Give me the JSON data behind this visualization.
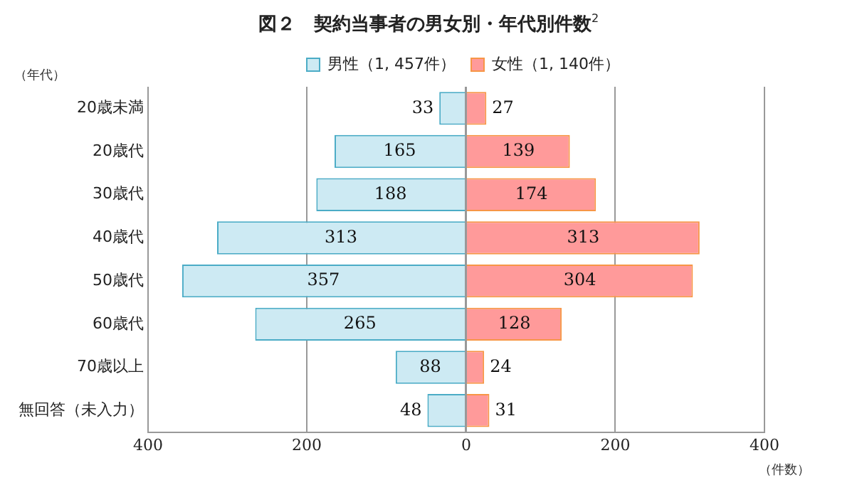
{
  "chart_data": [
    {
      "type": "bar",
      "orientation": "horizontal",
      "title": "図２　契約当事者の男女別・年代別件数$^{2}$",
      "ylabel": "（年代）",
      "categories": [
        "20歳未満",
        "20歳代",
        "30歳代",
        "40歳代",
        "50歳代",
        "60歳代",
        "70歳以上",
        "無回答（未入力）"
      ],
      "series": [
        {
          "name": "男性（1, 457件）",
          "color": "#cdeaf3",
          "values": [
            33,
            165,
            188,
            313,
            357,
            265,
            88,
            48
          ]
        }
      ],
      "data_labels": true,
      "xlim": [
        400,
        0
      ],
      "xticks": [
        400,
        200,
        {
          "value": 0,
          "label": null
        }
      ],
      "grid": "x",
      "legend": "top"
    },
    {
      "type": "bar",
      "orientation": "horizontal",
      "xlabel": "（件数）",
      "series": [
        {
          "name": "女性（1, 140件）",
          "color": "#ff9a9a",
          "values": [
            27,
            139,
            174,
            313,
            304,
            128,
            24,
            31
          ]
        }
      ],
      "data_labels": true,
      "xlim": [
        0,
        400
      ],
      "xticks": [
        0,
        200,
        400
      ],
      "grid": "x",
      "legend": "top",
      "tick_labels": "x"
    }
  ]
}
